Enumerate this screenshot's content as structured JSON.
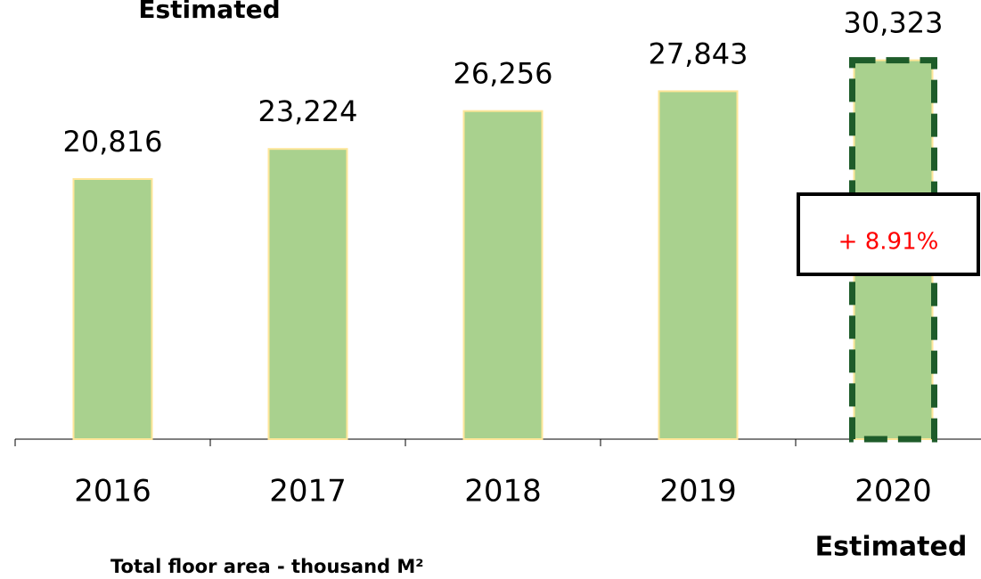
{
  "chart_data": {
    "type": "bar",
    "categories": [
      "2016",
      "2017",
      "2018",
      "2019",
      "2020"
    ],
    "values": [
      20816,
      23224,
      26256,
      27843,
      30323
    ],
    "value_labels": [
      "20,816",
      "23,224",
      "26,256",
      "27,843",
      "30,323"
    ],
    "color": "#a9d18e",
    "ylim": [
      0,
      35000
    ],
    "annotations": [
      "Estimated",
      "Estimated",
      "+ 8.91%"
    ],
    "x_label": "Total floor area - thousand M²"
  }
}
